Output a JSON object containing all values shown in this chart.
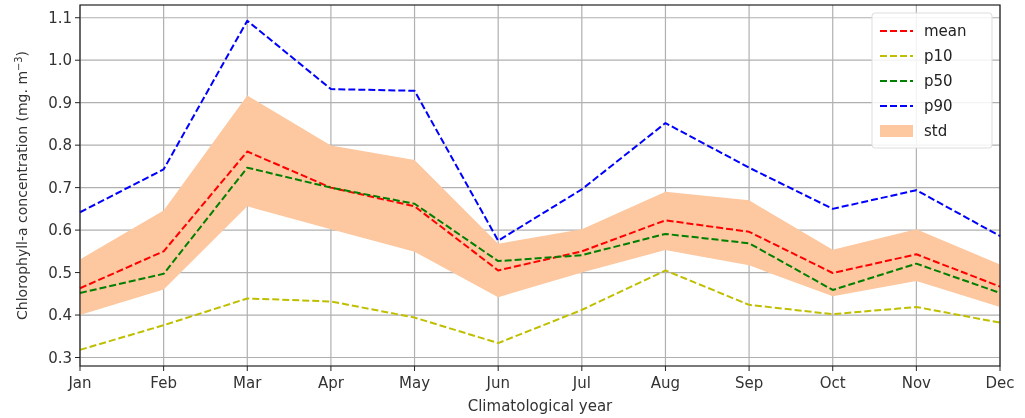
{
  "chart_data": {
    "type": "line",
    "xlabel": "Climatological year",
    "ylabel": "Chlorophyll-a concentration (mg. m$^{−3}$)",
    "categories": [
      "Jan",
      "Feb",
      "Mar",
      "Apr",
      "May",
      "Jun",
      "Jul",
      "Aug",
      "Sep",
      "Oct",
      "Nov",
      "Dec"
    ],
    "series": [
      {
        "name": "mean",
        "color": "#ff0000",
        "values": [
          0.463,
          0.55,
          0.785,
          0.7,
          0.656,
          0.505,
          0.55,
          0.623,
          0.596,
          0.499,
          0.543,
          0.467
        ]
      },
      {
        "name": "p10",
        "color": "#bfbf00",
        "values": [
          0.318,
          0.376,
          0.439,
          0.432,
          0.394,
          0.334,
          0.412,
          0.505,
          0.424,
          0.402,
          0.419,
          0.382
        ]
      },
      {
        "name": "p50",
        "color": "#008000",
        "values": [
          0.452,
          0.497,
          0.747,
          0.7,
          0.662,
          0.527,
          0.541,
          0.591,
          0.569,
          0.459,
          0.521,
          0.452
        ]
      },
      {
        "name": "p90",
        "color": "#0000ff",
        "values": [
          0.642,
          0.743,
          1.093,
          0.932,
          0.928,
          0.575,
          0.696,
          0.852,
          0.747,
          0.65,
          0.694,
          0.586
        ]
      },
      {
        "name": "std",
        "type": "area",
        "color": "#fdc79f",
        "values": [
          null,
          null,
          null,
          null,
          null,
          null,
          null,
          null,
          null,
          null,
          null,
          null
        ],
        "lower": [
          0.4,
          0.46,
          0.656,
          0.602,
          0.549,
          0.442,
          0.5,
          0.553,
          0.517,
          0.444,
          0.48,
          0.419
        ],
        "upper": [
          0.531,
          0.646,
          0.917,
          0.799,
          0.765,
          0.568,
          0.602,
          0.69,
          0.67,
          0.554,
          0.602,
          0.519
        ]
      }
    ],
    "ylim": [
      0.28,
      1.13
    ],
    "yticks": [
      0.3,
      0.4,
      0.5,
      0.6,
      0.7,
      0.8,
      0.9,
      {
        "value": 1,
        "label": "1.0"
      },
      1.1
    ],
    "grid": true,
    "legend": "top right",
    "line_style": "dashed"
  }
}
